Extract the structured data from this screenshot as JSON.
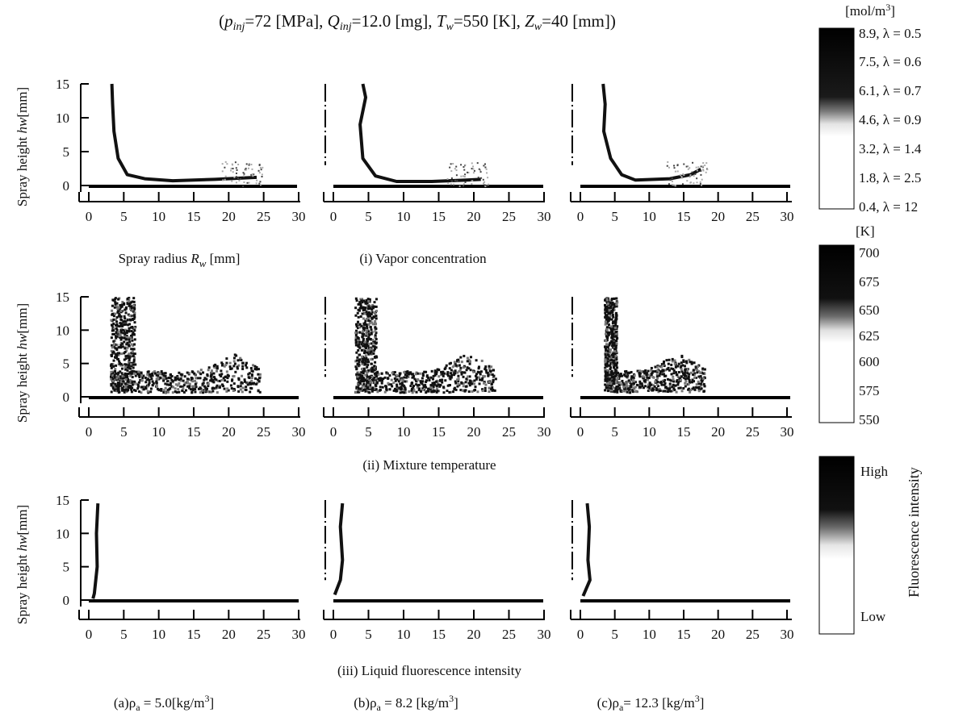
{
  "title_parts": {
    "p": "p",
    "p_sub": "inj",
    "p_val": "=72 [MPa], ",
    "q": "Q",
    "q_sub": "inj",
    "q_val": "=12.0 [mg], ",
    "t": "T",
    "t_sub": "w",
    "t_val": "=550 [K], ",
    "z": "Z",
    "z_sub": "w",
    "z_val": "=40 [mm])",
    "open": "("
  },
  "axes": {
    "ylabel": "Spray height hw [mm]",
    "ylabel_parts": {
      "pre": "Spray  height  ",
      "var": "hw",
      "unit": "[mm]"
    },
    "y_ticks": [
      "0",
      "5",
      "10",
      "15"
    ],
    "x_ticks": [
      "0",
      "5",
      "10",
      "15",
      "20",
      "25",
      "30"
    ],
    "xlabel_parts": {
      "pre": "Spray  radius  ",
      "var": "R",
      "sub": "w",
      "unit": " [mm]"
    }
  },
  "row_captions": [
    "(i) Vapor concentration",
    "(ii) Mixture temperature",
    "(iii) Liquid fluorescence intensity"
  ],
  "column_captions": [
    {
      "pre": "(a)",
      "rho": "ρ",
      "sub": "a",
      "val": " = 5.0[kg/m",
      "sup": "3",
      "close": "]"
    },
    {
      "pre": "(b)",
      "rho": "ρ",
      "sub": "a",
      "val": " = 8.2 [kg/m",
      "sup": "3",
      "close": "]"
    },
    {
      "pre": "(c)",
      "rho": "ρ",
      "sub": "a",
      "val": "= 12.3 [kg/m",
      "sup": "3",
      "close": "]"
    }
  ],
  "colorbars": [
    {
      "unit": "[mol/m",
      "unit_sup": "3",
      "unit_close": "]",
      "labels": [
        "8.9, λ = 0.5",
        "7.5, λ = 0.6",
        "6.1, λ = 0.7",
        "4.6, λ = 0.9",
        "3.2, λ = 1.4",
        "1.8, λ = 2.5",
        "0.4, λ = 12"
      ]
    },
    {
      "unit": "[K]",
      "labels": [
        "700",
        "675",
        "650",
        "625",
        "600",
        "575",
        "550"
      ]
    },
    {
      "title": "Fluorescence  intensity",
      "labels": [
        "High",
        "Low"
      ]
    }
  ],
  "colors": {
    "ink": "#111111",
    "background": "#ffffff"
  },
  "chart_data": [
    {
      "type": "image-contour",
      "row": "(i) Vapor concentration",
      "panel": "(a)",
      "xlim": [
        0,
        30
      ],
      "ylim": [
        0,
        15
      ],
      "unit": "mol/m3",
      "outline": [
        [
          3.3,
          15
        ],
        [
          3.4,
          12
        ],
        [
          3.6,
          8
        ],
        [
          4.2,
          4
        ],
        [
          5.5,
          1.6
        ],
        [
          8,
          1.0
        ],
        [
          12,
          0.7
        ],
        [
          18,
          0.9
        ],
        [
          24,
          1.2
        ]
      ],
      "series": [
        {
          "values": []
        }
      ]
    },
    {
      "type": "image-contour",
      "row": "(i) Vapor concentration",
      "panel": "(b)",
      "xlim": [
        0,
        30
      ],
      "ylim": [
        0,
        15
      ],
      "unit": "mol/m3",
      "outline": [
        [
          4.2,
          15
        ],
        [
          4.6,
          13
        ],
        [
          3.8,
          9
        ],
        [
          4.2,
          4
        ],
        [
          6,
          1.4
        ],
        [
          9,
          0.6
        ],
        [
          14,
          0.6
        ],
        [
          19,
          0.8
        ],
        [
          21,
          0.9
        ]
      ],
      "series": [
        {
          "values": []
        }
      ]
    },
    {
      "type": "image-contour",
      "row": "(i) Vapor concentration",
      "panel": "(c)",
      "xlim": [
        0,
        30
      ],
      "ylim": [
        0,
        15
      ],
      "unit": "mol/m3",
      "outline": [
        [
          3.3,
          15
        ],
        [
          3.6,
          12
        ],
        [
          3.4,
          8
        ],
        [
          4.4,
          4
        ],
        [
          6,
          1.6
        ],
        [
          8,
          0.8
        ],
        [
          13,
          1.0
        ],
        [
          16,
          1.6
        ],
        [
          17.5,
          2.4
        ]
      ],
      "series": [
        {
          "values": []
        }
      ]
    },
    {
      "type": "image-contour",
      "row": "(ii) Mixture temperature",
      "panel": "(a)",
      "xlim": [
        0,
        30
      ],
      "ylim": [
        0,
        15
      ],
      "unit": "K",
      "series": [
        {
          "values": []
        }
      ]
    },
    {
      "type": "image-contour",
      "row": "(ii) Mixture temperature",
      "panel": "(b)",
      "xlim": [
        0,
        30
      ],
      "ylim": [
        0,
        15
      ],
      "unit": "K",
      "series": [
        {
          "values": []
        }
      ]
    },
    {
      "type": "image-contour",
      "row": "(ii) Mixture temperature",
      "panel": "(c)",
      "xlim": [
        0,
        30
      ],
      "ylim": [
        0,
        15
      ],
      "unit": "K",
      "series": [
        {
          "values": []
        }
      ]
    },
    {
      "type": "image-contour",
      "row": "(iii) Liquid fluorescence intensity",
      "panel": "(a)",
      "xlim": [
        0,
        30
      ],
      "ylim": [
        0,
        15
      ],
      "outline": [
        [
          1.3,
          14.5
        ],
        [
          1.1,
          10
        ],
        [
          1.2,
          5
        ],
        [
          0.8,
          1
        ],
        [
          0.6,
          0.2
        ]
      ],
      "series": [
        {
          "values": []
        }
      ]
    },
    {
      "type": "image-contour",
      "row": "(iii) Liquid fluorescence intensity",
      "panel": "(b)",
      "xlim": [
        0,
        30
      ],
      "ylim": [
        0,
        15
      ],
      "outline": [
        [
          1.3,
          14.5
        ],
        [
          1.0,
          11
        ],
        [
          1.3,
          6
        ],
        [
          1.0,
          3
        ],
        [
          0.2,
          0.8
        ]
      ],
      "series": [
        {
          "values": []
        }
      ]
    },
    {
      "type": "image-contour",
      "row": "(iii) Liquid fluorescence intensity",
      "panel": "(c)",
      "xlim": [
        0,
        30
      ],
      "ylim": [
        0,
        15
      ],
      "outline": [
        [
          1.0,
          14.5
        ],
        [
          1.3,
          11
        ],
        [
          1.1,
          6
        ],
        [
          1.4,
          3
        ],
        [
          0.4,
          0.6
        ]
      ],
      "series": [
        {
          "values": []
        }
      ]
    }
  ]
}
